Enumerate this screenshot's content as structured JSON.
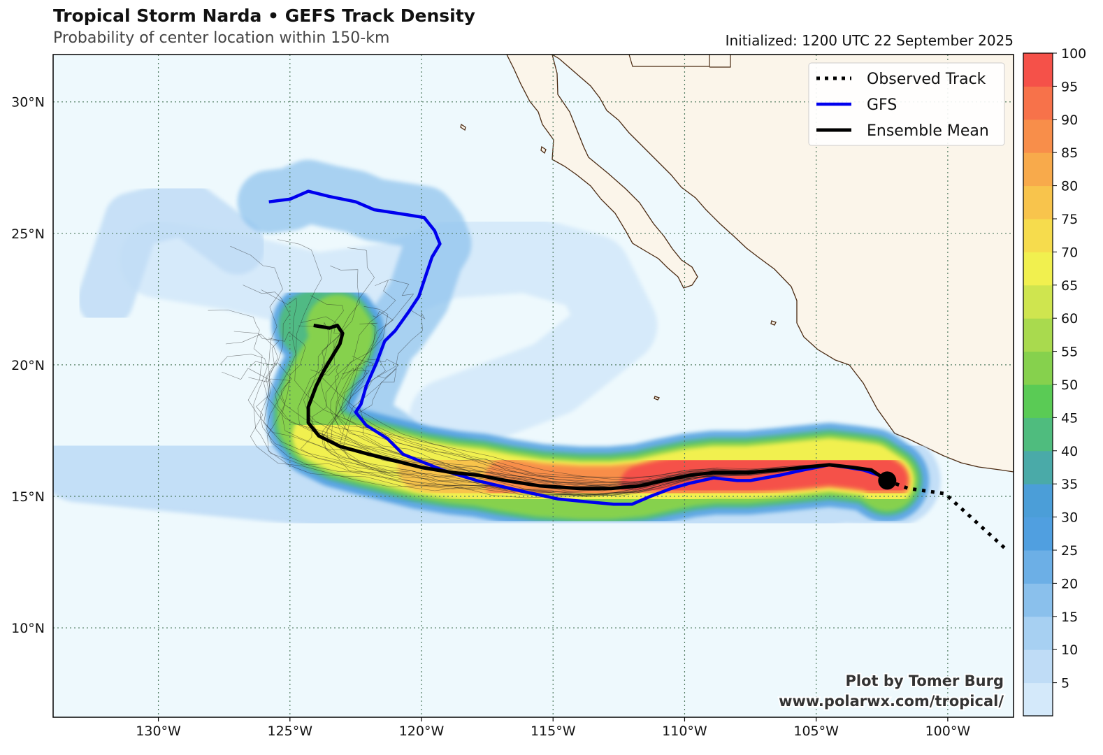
{
  "header": {
    "title": "Tropical Storm Narda • GEFS Track Density",
    "subtitle": "Probability of center location within 150-km",
    "initialized": "Initialized: 1200 UTC 22 September 2025"
  },
  "map": {
    "lon_range": [
      -134,
      -97.5
    ],
    "lat_range": [
      6.6,
      31.8
    ],
    "lat_ticks": [
      {
        "value": 10,
        "label": "10°N"
      },
      {
        "value": 15,
        "label": "15°N"
      },
      {
        "value": 20,
        "label": "20°N"
      },
      {
        "value": 25,
        "label": "25°N"
      },
      {
        "value": 30,
        "label": "30°N"
      }
    ],
    "lon_ticks": [
      {
        "value": -130,
        "label": "130°W"
      },
      {
        "value": -125,
        "label": "125°W"
      },
      {
        "value": -120,
        "label": "120°W"
      },
      {
        "value": -115,
        "label": "115°W"
      },
      {
        "value": -110,
        "label": "110°W"
      },
      {
        "value": -105,
        "label": "105°W"
      },
      {
        "value": -100,
        "label": "100°W"
      }
    ],
    "colors": {
      "ocean": "#eef9fd",
      "land": "#fbf5ea",
      "coast": "#4a2a12",
      "gfs": "#0000ee",
      "mean": "#000000",
      "grid": "#4f7a5f"
    }
  },
  "legend": {
    "entries": [
      {
        "label": "Observed Track",
        "style": "dotted"
      },
      {
        "label": "GFS",
        "style": "blue"
      },
      {
        "label": "Ensemble Mean",
        "style": "black"
      }
    ]
  },
  "colorbar": {
    "tick_labels": [
      "5",
      "10",
      "15",
      "20",
      "25",
      "30",
      "35",
      "40",
      "45",
      "50",
      "55",
      "60",
      "65",
      "70",
      "75",
      "80",
      "85",
      "90",
      "95",
      "100"
    ],
    "colors": [
      "#d4e9fa",
      "#bfdcf6",
      "#a7d0f2",
      "#8ac0ec",
      "#6cafe6",
      "#509fe0",
      "#4b9ed8",
      "#4aaaa8",
      "#4fbc7e",
      "#5acb55",
      "#86d14d",
      "#a9da4e",
      "#cfe54f",
      "#f1f04f",
      "#f6dc4d",
      "#f8c44c",
      "#f8aa4b",
      "#f88e4a",
      "#f7724a",
      "#f55149"
    ]
  },
  "tracks": {
    "observed": [
      [
        -102.3,
        15.6
      ],
      [
        -101.5,
        15.3
      ],
      [
        -100.1,
        15.1
      ],
      [
        -99.0,
        14.1
      ],
      [
        -97.8,
        13.0
      ]
    ],
    "gfs": [
      [
        -125.8,
        26.2
      ],
      [
        -125.0,
        26.3
      ],
      [
        -124.3,
        26.6
      ],
      [
        -123.5,
        26.4
      ],
      [
        -122.5,
        26.2
      ],
      [
        -121.8,
        25.9
      ],
      [
        -120.5,
        25.7
      ],
      [
        -119.9,
        25.6
      ],
      [
        -119.5,
        25.1
      ],
      [
        -119.3,
        24.6
      ],
      [
        -119.6,
        24.1
      ],
      [
        -119.8,
        23.5
      ],
      [
        -120.1,
        22.6
      ],
      [
        -120.5,
        22.0
      ],
      [
        -121.0,
        21.3
      ],
      [
        -121.4,
        20.9
      ],
      [
        -121.7,
        20.1
      ],
      [
        -122.1,
        19.2
      ],
      [
        -122.3,
        18.5
      ],
      [
        -122.5,
        18.2
      ],
      [
        -122.1,
        17.7
      ],
      [
        -121.3,
        17.2
      ],
      [
        -120.7,
        16.6
      ],
      [
        -119.2,
        16.0
      ],
      [
        -117.9,
        15.6
      ],
      [
        -116.2,
        15.2
      ],
      [
        -114.8,
        14.9
      ],
      [
        -113.8,
        14.8
      ],
      [
        -112.7,
        14.7
      ],
      [
        -112.0,
        14.7
      ],
      [
        -111.3,
        15.0
      ],
      [
        -110.5,
        15.3
      ],
      [
        -109.8,
        15.5
      ],
      [
        -108.9,
        15.7
      ],
      [
        -108.0,
        15.6
      ],
      [
        -107.5,
        15.6
      ],
      [
        -106.4,
        15.8
      ],
      [
        -105.5,
        16.0
      ],
      [
        -104.5,
        16.2
      ],
      [
        -103.8,
        16.1
      ],
      [
        -103.2,
        16.0
      ],
      [
        -102.3,
        15.7
      ]
    ],
    "mean": [
      [
        -124.1,
        21.5
      ],
      [
        -123.5,
        21.4
      ],
      [
        -123.2,
        21.5
      ],
      [
        -123.0,
        21.2
      ],
      [
        -123.1,
        20.8
      ],
      [
        -123.4,
        20.3
      ],
      [
        -123.7,
        19.8
      ],
      [
        -124.0,
        19.2
      ],
      [
        -124.3,
        18.4
      ],
      [
        -124.3,
        17.8
      ],
      [
        -123.9,
        17.3
      ],
      [
        -123.1,
        16.9
      ],
      [
        -122.0,
        16.6
      ],
      [
        -121.2,
        16.4
      ],
      [
        -120.0,
        16.1
      ],
      [
        -118.8,
        15.9
      ],
      [
        -117.8,
        15.8
      ],
      [
        -116.8,
        15.6
      ],
      [
        -115.5,
        15.4
      ],
      [
        -114.0,
        15.3
      ],
      [
        -112.8,
        15.3
      ],
      [
        -111.7,
        15.4
      ],
      [
        -110.8,
        15.6
      ],
      [
        -109.8,
        15.8
      ],
      [
        -108.9,
        15.9
      ],
      [
        -107.6,
        15.9
      ],
      [
        -106.5,
        16.0
      ],
      [
        -105.5,
        16.1
      ],
      [
        -104.5,
        16.2
      ],
      [
        -103.6,
        16.1
      ],
      [
        -102.9,
        16.0
      ],
      [
        -102.3,
        15.6
      ]
    ],
    "current_position": [
      -102.3,
      15.6
    ]
  },
  "credit": {
    "line1": "Plot by Tomer Burg",
    "line2": "www.polarwx.com/tropical/"
  }
}
